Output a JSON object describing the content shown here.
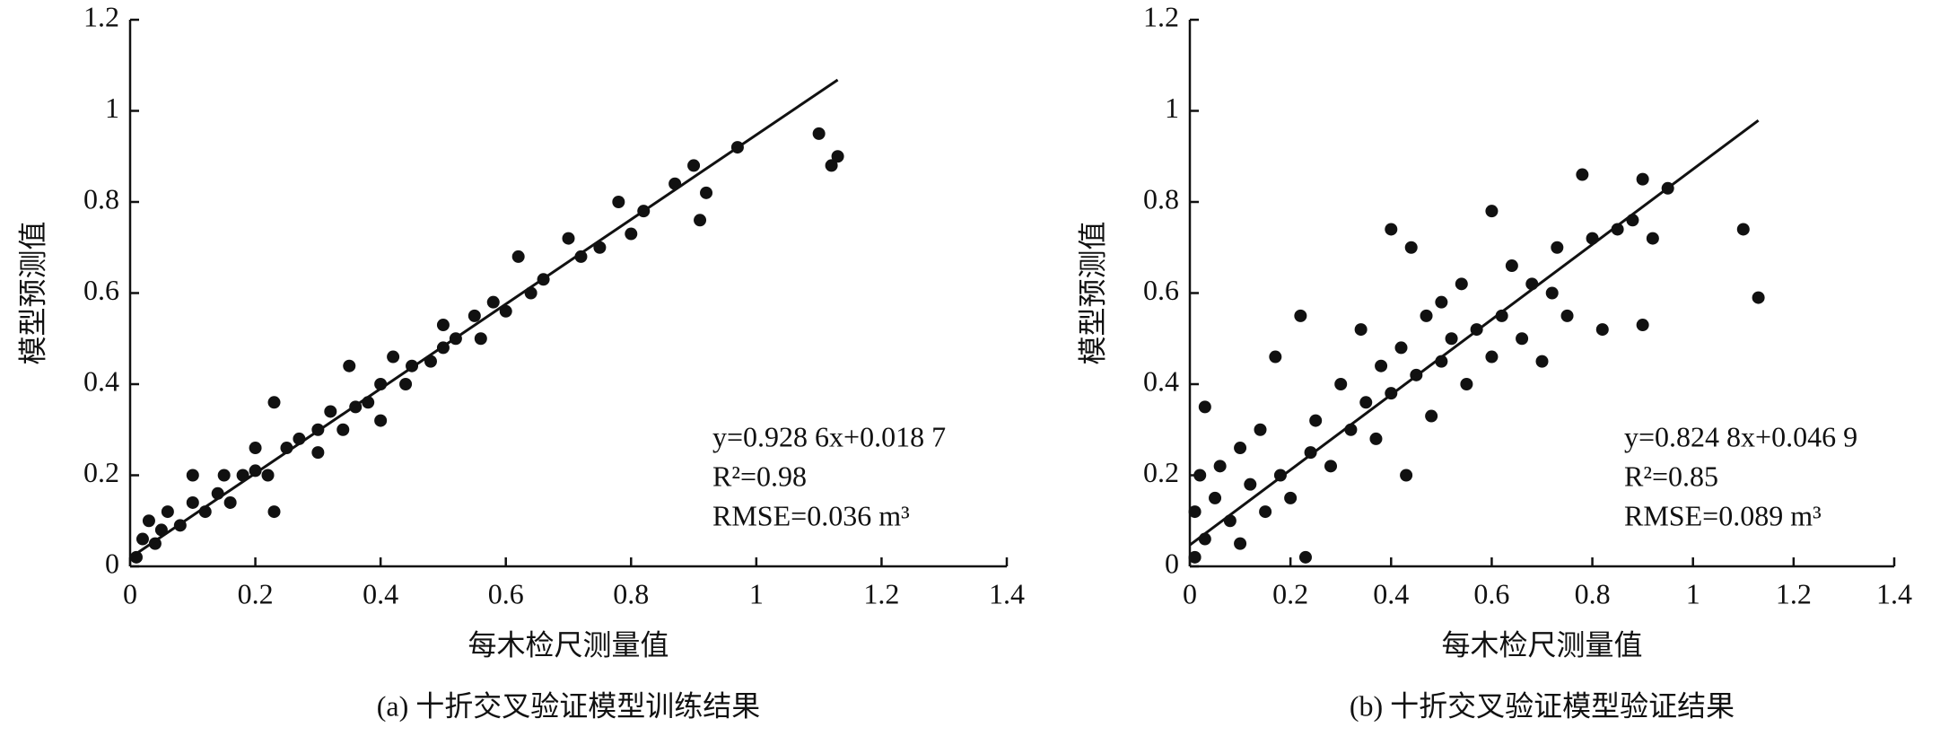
{
  "chart_data": [
    {
      "type": "scatter",
      "x_label": "每木检尺测量值",
      "y_label": "模型预测值",
      "caption": "(a) 十折交叉验证模型训练结果",
      "annotations": [
        "y=0.928 6x+0.018 7",
        "R²=0.98",
        "RMSE=0.036 m³"
      ],
      "xlim": [
        0,
        1.4
      ],
      "ylim": [
        0,
        1.2
      ],
      "xticks": [
        0,
        0.2,
        0.4,
        0.6,
        0.8,
        1,
        1.2,
        1.4
      ],
      "yticks": [
        0,
        0.2,
        0.4,
        0.6,
        0.8,
        1,
        1.2
      ],
      "color": "#111111",
      "x": [
        0.01,
        0.02,
        0.03,
        0.04,
        0.05,
        0.06,
        0.08,
        0.1,
        0.1,
        0.12,
        0.14,
        0.15,
        0.16,
        0.18,
        0.2,
        0.2,
        0.22,
        0.23,
        0.23,
        0.25,
        0.27,
        0.3,
        0.3,
        0.32,
        0.34,
        0.35,
        0.36,
        0.38,
        0.4,
        0.4,
        0.42,
        0.44,
        0.45,
        0.48,
        0.5,
        0.5,
        0.52,
        0.55,
        0.56,
        0.58,
        0.6,
        0.62,
        0.64,
        0.66,
        0.7,
        0.72,
        0.75,
        0.78,
        0.8,
        0.82,
        0.87,
        0.9,
        0.91,
        0.92,
        0.97,
        1.1,
        1.12,
        1.13
      ],
      "values": [
        0.02,
        0.06,
        0.1,
        0.05,
        0.08,
        0.12,
        0.09,
        0.14,
        0.2,
        0.12,
        0.16,
        0.2,
        0.14,
        0.2,
        0.21,
        0.26,
        0.2,
        0.36,
        0.12,
        0.26,
        0.28,
        0.3,
        0.25,
        0.34,
        0.3,
        0.44,
        0.35,
        0.36,
        0.4,
        0.32,
        0.46,
        0.4,
        0.44,
        0.45,
        0.48,
        0.53,
        0.5,
        0.55,
        0.5,
        0.58,
        0.56,
        0.68,
        0.6,
        0.63,
        0.72,
        0.68,
        0.7,
        0.8,
        0.73,
        0.78,
        0.84,
        0.88,
        0.76,
        0.82,
        0.92,
        0.95,
        0.88,
        0.9
      ],
      "fit_line": {
        "x": [
          0,
          1.13
        ],
        "values": [
          0.0187,
          1.068
        ]
      }
    },
    {
      "type": "scatter",
      "x_label": "每木检尺测量值",
      "y_label": "模型预测值",
      "caption": "(b) 十折交叉验证模型验证结果",
      "annotations": [
        "y=0.824 8x+0.046 9",
        "R²=0.85",
        "RMSE=0.089 m³"
      ],
      "xlim": [
        0,
        1.4
      ],
      "ylim": [
        0,
        1.2
      ],
      "xticks": [
        0,
        0.2,
        0.4,
        0.6,
        0.8,
        1,
        1.2,
        1.4
      ],
      "yticks": [
        0,
        0.2,
        0.4,
        0.6,
        0.8,
        1,
        1.2
      ],
      "color": "#111111",
      "x": [
        0.01,
        0.01,
        0.02,
        0.03,
        0.03,
        0.05,
        0.06,
        0.08,
        0.1,
        0.1,
        0.12,
        0.14,
        0.15,
        0.17,
        0.18,
        0.2,
        0.22,
        0.23,
        0.24,
        0.25,
        0.28,
        0.3,
        0.32,
        0.34,
        0.35,
        0.37,
        0.38,
        0.4,
        0.4,
        0.42,
        0.43,
        0.44,
        0.45,
        0.47,
        0.48,
        0.5,
        0.5,
        0.52,
        0.54,
        0.55,
        0.57,
        0.6,
        0.6,
        0.62,
        0.64,
        0.66,
        0.68,
        0.7,
        0.72,
        0.73,
        0.75,
        0.78,
        0.8,
        0.82,
        0.85,
        0.88,
        0.9,
        0.9,
        0.92,
        0.95,
        1.1,
        1.13
      ],
      "values": [
        0.02,
        0.12,
        0.2,
        0.35,
        0.06,
        0.15,
        0.22,
        0.1,
        0.26,
        0.05,
        0.18,
        0.3,
        0.12,
        0.46,
        0.2,
        0.15,
        0.55,
        0.02,
        0.25,
        0.32,
        0.22,
        0.4,
        0.3,
        0.52,
        0.36,
        0.28,
        0.44,
        0.74,
        0.38,
        0.48,
        0.2,
        0.7,
        0.42,
        0.55,
        0.33,
        0.45,
        0.58,
        0.5,
        0.62,
        0.4,
        0.52,
        0.78,
        0.46,
        0.55,
        0.66,
        0.5,
        0.62,
        0.45,
        0.6,
        0.7,
        0.55,
        0.86,
        0.72,
        0.52,
        0.74,
        0.76,
        0.85,
        0.53,
        0.72,
        0.83,
        0.74,
        0.59
      ],
      "fit_line": {
        "x": [
          0,
          1.13
        ],
        "values": [
          0.0469,
          0.979
        ]
      }
    }
  ]
}
